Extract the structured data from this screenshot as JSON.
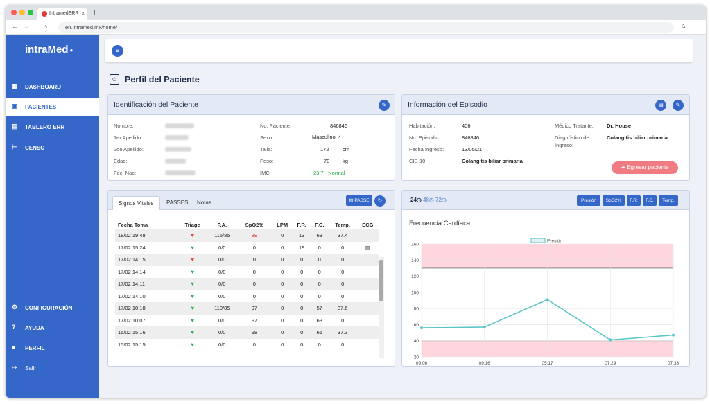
{
  "browser": {
    "tab_title": "IntramedERR",
    "url": "err.intramed.mx/home/"
  },
  "sidebar": {
    "logo": "intraMed",
    "items": [
      {
        "label": "DASHBOARD",
        "icon": "dashboard-icon"
      },
      {
        "label": "PACIENTES",
        "icon": "patient-card-icon"
      },
      {
        "label": "TABLERO ERR",
        "icon": "board-icon"
      },
      {
        "label": "CENSO",
        "icon": "bed-icon"
      },
      {
        "label": "CONFIGURACIÓN",
        "icon": "gear-icon"
      },
      {
        "label": "AYUDA",
        "icon": "help-icon"
      },
      {
        "label": "PERFIL",
        "icon": "user-icon"
      },
      {
        "label": "Salir",
        "icon": "logout-icon"
      }
    ]
  },
  "page": {
    "title": "Perfil del Paciente"
  },
  "identificacion": {
    "title": "Identificación del Paciente",
    "labels": {
      "nombre": "Nombre:",
      "apellido1": "1er Apellido:",
      "apellido2": "2do Apellido:",
      "edad": "Edad:",
      "fecnac": "Fec. Nac:",
      "nopac": "No. Paciente:",
      "sexo": "Sexo:",
      "talla": "Talla:",
      "peso": "Peso:",
      "imc": "IMC:"
    },
    "values": {
      "nopac": "846846",
      "sexo": "Masculino ♂",
      "talla": "172",
      "talla_unit": "cm",
      "peso": "70",
      "peso_unit": "kg",
      "imc": "23.7 - Normal"
    }
  },
  "episodio": {
    "title": "Información del Episodio",
    "labels": {
      "habitacion": "Habitación:",
      "noepisodio": "No. Episodio:",
      "fecha": "Fecha Ingreso:",
      "cie": "CIE-10",
      "medico": "Médico Tratante:",
      "diag1": "Diagnóstico de",
      "diag2": "Ingreso:"
    },
    "values": {
      "habitacion": "406",
      "noepisodio": "846846",
      "fecha": "13/05/21",
      "cie": "Colangitis biliar primaria",
      "medico": "Dr. House",
      "diag": "Colangitis biliar primaria"
    },
    "egresar": "Egresar paciente"
  },
  "vitals": {
    "tabs": [
      "Signos Vitales",
      "PASSES",
      "Notas"
    ],
    "passe_button": "PASSE",
    "headers": [
      "Fecha Toma",
      "Triage",
      "P.A.",
      "SpO2%",
      "LPM",
      "F.R.",
      "F.C.",
      "Temp.",
      "ECG"
    ],
    "rows": [
      [
        "18/02 19:48",
        "red",
        "115/85",
        "89",
        "0",
        "13",
        "63",
        "37.4",
        ""
      ],
      [
        "17/02 15:24",
        "green",
        "0/0",
        "0",
        "0",
        "19",
        "0",
        "0",
        "doc"
      ],
      [
        "17/02 14:15",
        "red",
        "0/0",
        "0",
        "0",
        "0",
        "0",
        "0",
        ""
      ],
      [
        "17/02 14:14",
        "green",
        "0/0",
        "0",
        "0",
        "0",
        "0",
        "0",
        ""
      ],
      [
        "17/02 14:11",
        "green",
        "0/0",
        "0",
        "0",
        "0",
        "0",
        "0",
        ""
      ],
      [
        "17/02 14:10",
        "green",
        "0/0",
        "0",
        "0",
        "0",
        "0",
        "0",
        ""
      ],
      [
        "17/02 10:18",
        "green",
        "110/85",
        "97",
        "0",
        "0",
        "57",
        "37.6",
        ""
      ],
      [
        "17/02 10:07",
        "green",
        "0/0",
        "97",
        "0",
        "0",
        "63",
        "0",
        ""
      ],
      [
        "15/02 15:16",
        "green",
        "0/0",
        "98",
        "0",
        "0",
        "65",
        "37.3",
        ""
      ],
      [
        "15/02 15:15",
        "green",
        "0/0",
        "0",
        "0",
        "0",
        "0",
        "0",
        ""
      ]
    ]
  },
  "chart_panel": {
    "periods": [
      "24",
      "48",
      "72"
    ],
    "buttons": [
      "Presión",
      "SpO2%",
      "F.R.",
      "F.C.",
      "Temp."
    ]
  },
  "chart_data": {
    "type": "line",
    "title": "Frecuencia Cardíaca",
    "legend": "Presión",
    "legend_position": "top",
    "x": [
      "09:06",
      "09:16",
      "05:17",
      "07:29",
      "07:33"
    ],
    "values": [
      56,
      57,
      91,
      41,
      47
    ],
    "ylim": [
      20,
      160
    ],
    "yticks": [
      20,
      40,
      60,
      80,
      100,
      120,
      140,
      160
    ],
    "bands": [
      [
        130,
        160
      ],
      [
        20,
        40
      ]
    ],
    "color": "#5cc6c6",
    "band_color": "#ffd6de",
    "grid": true
  }
}
